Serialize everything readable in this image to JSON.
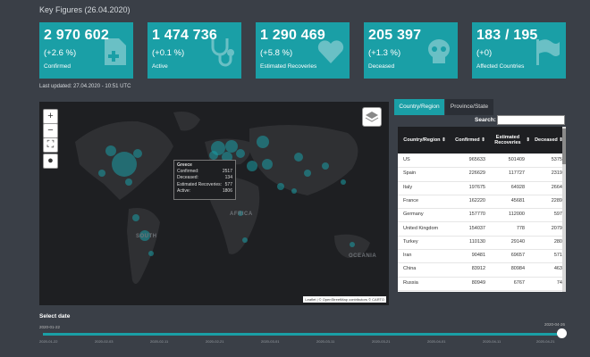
{
  "header": {
    "title": "Key Figures (26.04.2020)"
  },
  "cards": [
    {
      "value": "2 970 602",
      "change": "(+2.6 %)",
      "label": "Confirmed",
      "icon": "medical-file-icon"
    },
    {
      "value": "1 474 736",
      "change": "(+0.1 %)",
      "label": "Active",
      "icon": "stethoscope-icon"
    },
    {
      "value": "1 290 469",
      "change": "(+5.8 %)",
      "label": "Estimated Recoveries",
      "icon": "heart-icon"
    },
    {
      "value": "205 397",
      "change": "(+1.3 %)",
      "label": "Deceased",
      "icon": "skull-icon"
    },
    {
      "value": "183 / 195",
      "change": "(+0)",
      "label": "Affected Countries",
      "icon": "flag-icon"
    }
  ],
  "updated": "Last updated: 27.04.2020 - 10:51 UTC",
  "map": {
    "zoom_in": "+",
    "zoom_out": "−",
    "continents": {
      "south": "SOUTH",
      "africa": "AFRICA",
      "oceania": "OCEANIA"
    },
    "tooltip": {
      "country": "Greece",
      "rows": [
        {
          "label": "Confirmed:",
          "value": "2517"
        },
        {
          "label": "Deceased:",
          "value": "134"
        },
        {
          "label": "Estimated Recoveries:",
          "value": "577"
        },
        {
          "label": "Active:",
          "value": "1806"
        }
      ]
    },
    "attribution": "Leaflet | © OpenStreetMap contributors © CARTO"
  },
  "tabs": [
    {
      "label": "Country/Region"
    },
    {
      "label": "Province/State"
    }
  ],
  "search": {
    "label": "Search:",
    "value": ""
  },
  "table": {
    "headers": [
      "Country/Region",
      "Confirmed",
      "Estimated Recoveries",
      "Deceased"
    ],
    "rows": [
      [
        "US",
        "965633",
        "501409",
        "5375"
      ],
      [
        "Spain",
        "226629",
        "117727",
        "2319"
      ],
      [
        "Italy",
        "197675",
        "64928",
        "2664"
      ],
      [
        "France",
        "162220",
        "45681",
        "2289"
      ],
      [
        "Germany",
        "157770",
        "112000",
        "597"
      ],
      [
        "United Kingdom",
        "154037",
        "778",
        "2079"
      ],
      [
        "Turkey",
        "110130",
        "29140",
        "280"
      ],
      [
        "Iran",
        "90481",
        "69657",
        "571"
      ],
      [
        "China",
        "83912",
        "80984",
        "463"
      ],
      [
        "Russia",
        "80949",
        "6767",
        "74"
      ]
    ]
  },
  "slider": {
    "label": "Select date",
    "start": "2020-01-22",
    "end": "2020-04-26",
    "ticks": [
      "2020-01-22",
      "2020-02-03",
      "2020-02-11",
      "2020-02-21",
      "2020-03-01",
      "2020-03-11",
      "2020-03-21",
      "2020-04-01",
      "2020-04-11",
      "2020-04-21"
    ]
  },
  "colors": {
    "accent": "#1a9fa6",
    "background": "#3a3f47",
    "map": "#1e1f22"
  }
}
